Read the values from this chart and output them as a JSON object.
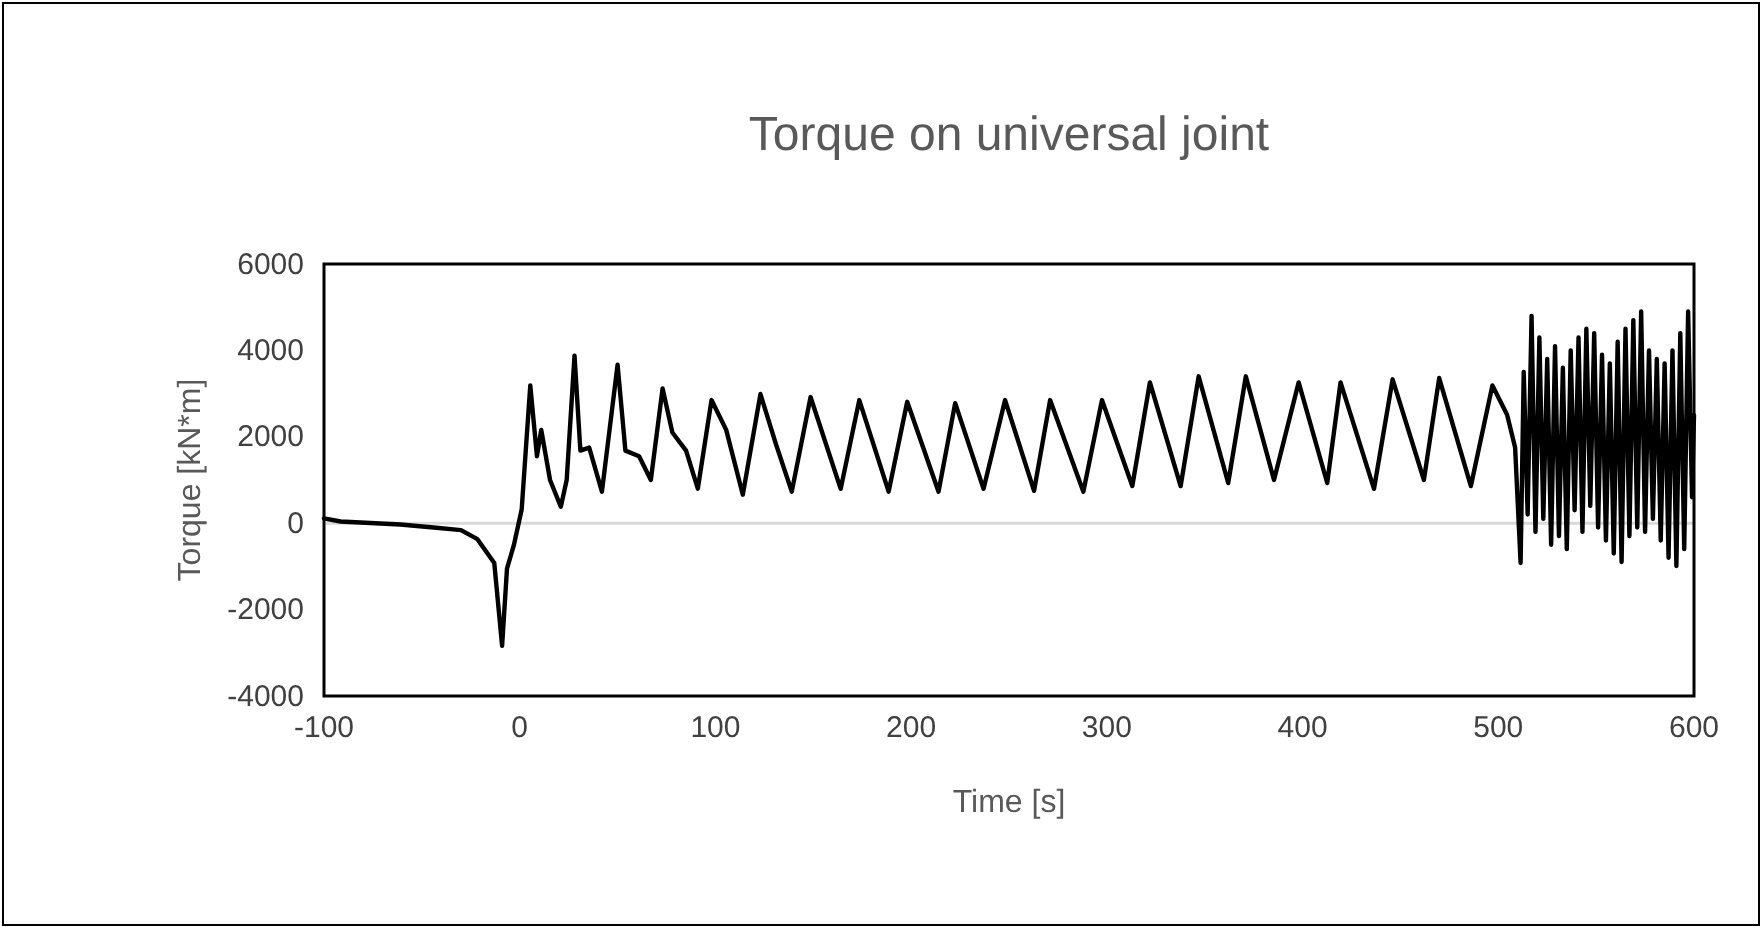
{
  "chart_data": {
    "type": "line",
    "title": "Torque on universal joint",
    "xlabel": "Time [s]",
    "ylabel": "Torque [kN*m]",
    "xlim": [
      -100,
      600
    ],
    "xticks": [
      -100,
      0,
      100,
      200,
      300,
      400,
      500,
      600
    ],
    "ylim": [
      -4000,
      6000
    ],
    "yticks": [
      -4000,
      -2000,
      0,
      2000,
      4000,
      6000
    ],
    "grid": false,
    "marker": "none",
    "line_style": "solid",
    "ref_lines": [
      {
        "axis": "y",
        "value": 0,
        "color": "#d9d9d9"
      }
    ],
    "series": [
      {
        "color": "#000000",
        "x": [
          -100,
          -91.5,
          -61,
          -44,
          -30,
          -21.6,
          -13,
          -9,
          -6.5,
          -3,
          1,
          5.4,
          8.8,
          11,
          15.5,
          21,
          24,
          28,
          31,
          35.5,
          42,
          50,
          54,
          61,
          67,
          73,
          78,
          85,
          91,
          98,
          105.5,
          114,
          123,
          131,
          139,
          148.6,
          164,
          173.5,
          188.5,
          198,
          214,
          222.5,
          237,
          248,
          262.8,
          271,
          288,
          297.5,
          313,
          322,
          337.7,
          346.9,
          362,
          371,
          385.4,
          398,
          412.6,
          419.4,
          436.5,
          446,
          462,
          469.8,
          486,
          497,
          504.5,
          508.6,
          511.4,
          513,
          515,
          517,
          519,
          521,
          523,
          525,
          527,
          529,
          531,
          533,
          535,
          537,
          539,
          541,
          543,
          545,
          547,
          549,
          551,
          553,
          555,
          557,
          559,
          561,
          563,
          565,
          567,
          569,
          571,
          573,
          575,
          577,
          579,
          581,
          583,
          585,
          587,
          589,
          591,
          593,
          595,
          597,
          599,
          600
        ],
        "values": [
          110,
          40,
          -30,
          -100,
          -160,
          -370,
          -920,
          -2840,
          -1050,
          -510,
          315,
          3190,
          1550,
          2160,
          1000,
          380,
          1000,
          3880,
          1680,
          1750,
          730,
          3670,
          1680,
          1550,
          1000,
          3120,
          2100,
          1680,
          800,
          2850,
          2160,
          660,
          2990,
          1820,
          730,
          2920,
          795,
          2850,
          730,
          2810,
          730,
          2780,
          795,
          2850,
          750,
          2850,
          730,
          2850,
          860,
          3260,
          860,
          3400,
          930,
          3400,
          1000,
          3260,
          930,
          3260,
          795,
          3330,
          1000,
          3360,
          860,
          3190,
          2510,
          1750,
          -920,
          3500,
          200,
          4800,
          -200,
          4300,
          100,
          3800,
          -500,
          4100,
          -300,
          3600,
          -600,
          4000,
          300,
          4300,
          -200,
          4500,
          400,
          4400,
          -100,
          3900,
          -400,
          3700,
          -700,
          4200,
          -900,
          4500,
          -300,
          4700,
          -100,
          4900,
          -200,
          4000,
          100,
          3800,
          -400,
          3700,
          -800,
          4000,
          -990,
          4400,
          -600,
          4900,
          600,
          2500
        ]
      }
    ]
  }
}
